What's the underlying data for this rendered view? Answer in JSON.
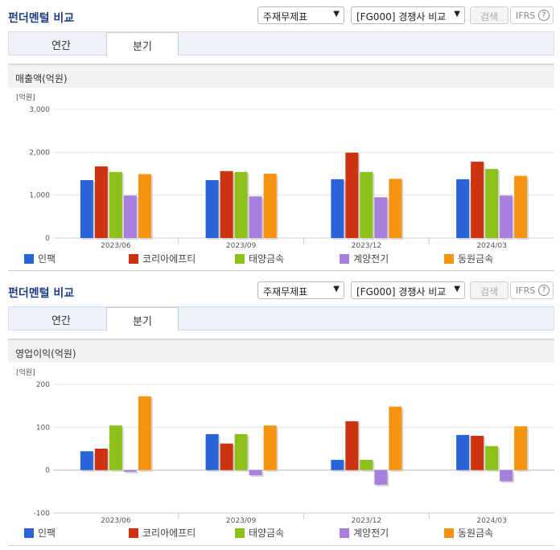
{
  "colors": {
    "title": "#1f3f7f",
    "series": [
      "#2a64d8",
      "#cc3311",
      "#8cc01a",
      "#a77fdc",
      "#f6940f"
    ]
  },
  "panels": [
    {
      "title": "펀더멘털 비교",
      "select1": "주재무제표",
      "select2": "[FG000] 경쟁사 비교",
      "search_label": "검색",
      "ifrs_label": "IFRS",
      "ifrs_help": "?",
      "tabs": [
        "연간",
        "분기"
      ],
      "active_tab": 1,
      "metric_label": "매출액(억원)",
      "unit_label": "[억원]",
      "chart_data": {
        "type": "bar",
        "title": "매출액(억원)",
        "categories": [
          "2023/06",
          "2023/09",
          "2023/12",
          "2024/03"
        ],
        "ylim": [
          0,
          3000
        ],
        "yticks": [
          0,
          1000,
          2000,
          3000
        ],
        "ytick_labels": [
          "0",
          "1,000",
          "2,000",
          "3,000"
        ],
        "series": [
          {
            "name": "인팩",
            "values": [
              1350,
              1350,
              1370,
              1370
            ]
          },
          {
            "name": "코리아에프티",
            "values": [
              1670,
              1560,
              1990,
              1780
            ]
          },
          {
            "name": "태양금속",
            "values": [
              1540,
              1540,
              1540,
              1610
            ]
          },
          {
            "name": "계양전기",
            "values": [
              990,
              970,
              950,
              990
            ]
          },
          {
            "name": "동원금속",
            "values": [
              1490,
              1500,
              1380,
              1450
            ]
          }
        ]
      }
    },
    {
      "title": "펀더멘털 비교",
      "select1": "주재무제표",
      "select2": "[FG000] 경쟁사 비교",
      "search_label": "검색",
      "ifrs_label": "IFRS",
      "ifrs_help": "?",
      "tabs": [
        "연간",
        "분기"
      ],
      "active_tab": 1,
      "metric_label": "영업이익(억원)",
      "unit_label": "[억원]",
      "chart_data": {
        "type": "bar",
        "title": "영업이익(억원)",
        "categories": [
          "2023/06",
          "2023/09",
          "2023/12",
          "2024/03"
        ],
        "ylim": [
          -100,
          200
        ],
        "yticks": [
          -100,
          0,
          100,
          200
        ],
        "ytick_labels": [
          "-100",
          "0",
          "100",
          "200"
        ],
        "series": [
          {
            "name": "인팩",
            "values": [
              44,
              84,
              24,
              82
            ]
          },
          {
            "name": "코리아에프티",
            "values": [
              50,
              62,
              114,
              80
            ]
          },
          {
            "name": "태양금속",
            "values": [
              104,
              84,
              24,
              56
            ]
          },
          {
            "name": "계양전기",
            "values": [
              -4,
              -12,
              -34,
              -26
            ]
          },
          {
            "name": "동원금속",
            "values": [
              172,
              104,
              148,
              102
            ]
          }
        ]
      }
    }
  ]
}
